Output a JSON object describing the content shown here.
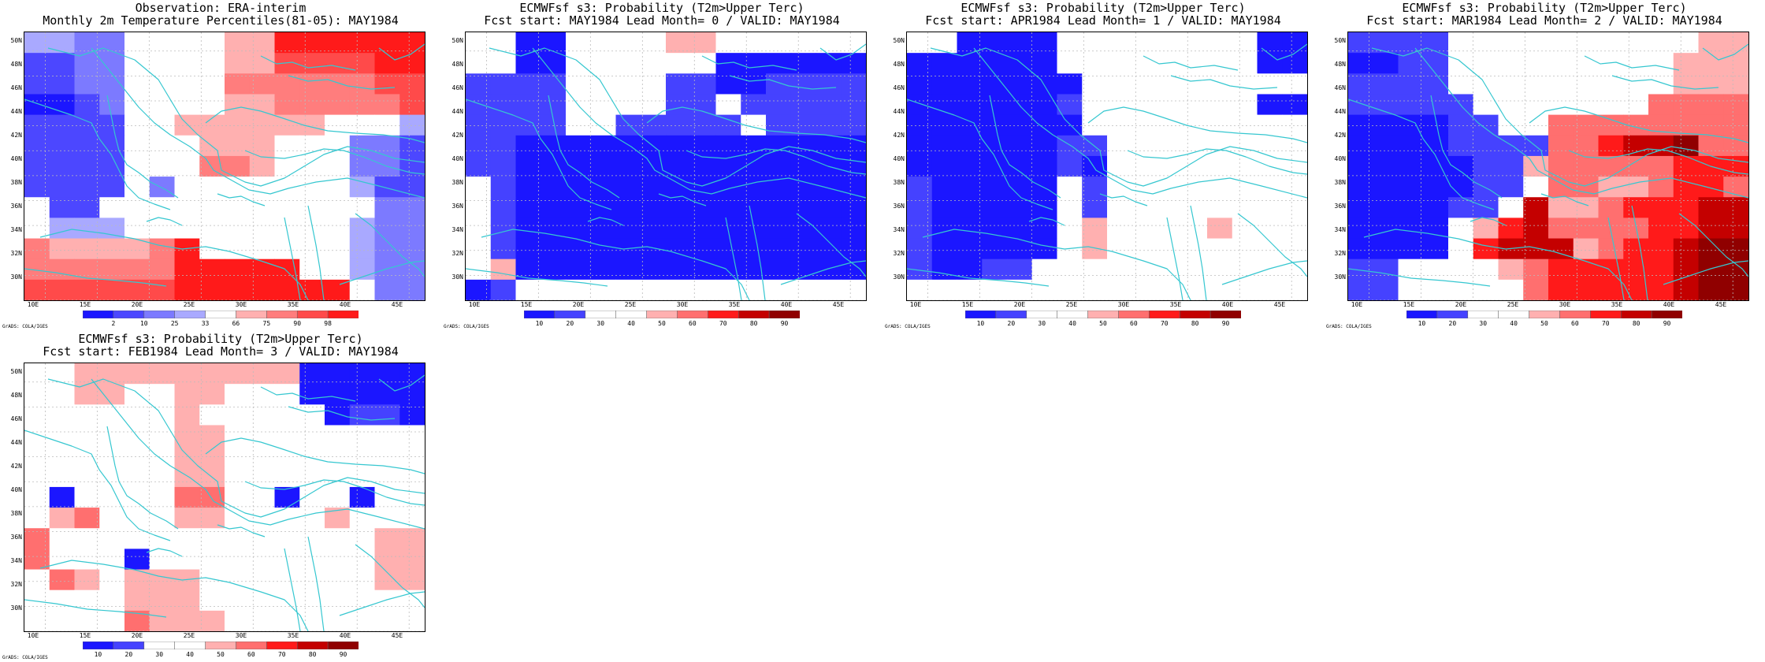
{
  "credit": "GrADS: COLA/IGES",
  "lat_labels": [
    "50N",
    "48N",
    "46N",
    "44N",
    "42N",
    "40N",
    "38N",
    "36N",
    "34N",
    "32N",
    "30N"
  ],
  "lon_labels": [
    "10E",
    "15E",
    "20E",
    "25E",
    "30E",
    "35E",
    "40E",
    "45E"
  ],
  "palette": {
    "map_line": "#36c7d0",
    "grid_line": "#bbbbbb",
    "obs": [
      "#1b16ff",
      "#4c47ff",
      "#7c7aff",
      "#a9a9ff",
      "#ffffff",
      "#ffb0b0",
      "#ff7d7d",
      "#ff4a4a",
      "#ff1a1a"
    ],
    "prob": [
      "#1b16ff",
      "#4542ff",
      "#ffffff",
      "#ffffff",
      "#ffb0b0",
      "#ff6f6f",
      "#ff1a1a",
      "#c40000",
      "#900000"
    ]
  },
  "panels": [
    {
      "title_line1": "Observation: ERA-interim",
      "title_line2": "Monthly 2m Temperature Percentiles(81-05): MAY1984",
      "colorbar_labels": [
        "2",
        "10",
        "25",
        "33",
        "66",
        "75",
        "90",
        "98"
      ],
      "scale": "obs",
      "grid": [
        [
          3,
          3,
          2,
          2,
          4,
          4,
          4,
          4,
          5,
          5,
          8,
          8,
          8,
          8,
          8,
          8
        ],
        [
          1,
          1,
          2,
          2,
          4,
          4,
          4,
          4,
          5,
          5,
          7,
          7,
          7,
          7,
          8,
          8
        ],
        [
          1,
          1,
          2,
          2,
          4,
          4,
          4,
          4,
          6,
          6,
          6,
          6,
          6,
          6,
          7,
          7
        ],
        [
          0,
          0,
          1,
          2,
          4,
          4,
          4,
          4,
          5,
          5,
          6,
          6,
          6,
          6,
          6,
          7
        ],
        [
          1,
          1,
          1,
          1,
          4,
          4,
          5,
          5,
          5,
          5,
          5,
          5,
          4,
          4,
          4,
          3
        ],
        [
          1,
          1,
          1,
          1,
          4,
          4,
          4,
          5,
          5,
          5,
          4,
          4,
          4,
          2,
          2,
          1
        ],
        [
          1,
          1,
          1,
          1,
          4,
          4,
          4,
          6,
          6,
          5,
          4,
          4,
          4,
          2,
          2,
          1
        ],
        [
          1,
          1,
          1,
          1,
          4,
          2,
          4,
          4,
          4,
          4,
          4,
          4,
          4,
          3,
          1,
          1
        ],
        [
          4,
          1,
          1,
          4,
          4,
          4,
          4,
          4,
          4,
          4,
          4,
          4,
          4,
          4,
          2,
          2
        ],
        [
          4,
          3,
          3,
          3,
          4,
          4,
          4,
          4,
          4,
          4,
          4,
          4,
          4,
          3,
          2,
          2
        ],
        [
          6,
          5,
          5,
          5,
          5,
          6,
          8,
          4,
          4,
          4,
          4,
          4,
          4,
          3,
          2,
          2
        ],
        [
          6,
          6,
          6,
          6,
          6,
          6,
          8,
          8,
          8,
          8,
          8,
          4,
          4,
          3,
          2,
          2
        ],
        [
          7,
          7,
          7,
          7,
          7,
          7,
          8,
          8,
          8,
          8,
          8,
          8,
          8,
          4,
          2,
          2
        ]
      ]
    },
    {
      "title_line1": "ECMWFsf s3: Probability (T2m>Upper Terc)",
      "title_line2": "Fcst start: MAY1984  Lead Month= 0 / VALID: MAY1984",
      "colorbar_labels": [
        "10",
        "20",
        "30",
        "40",
        "50",
        "60",
        "70",
        "80",
        "90"
      ],
      "scale": "prob",
      "grid": [
        [
          2,
          2,
          0,
          0,
          2,
          2,
          2,
          2,
          4,
          4,
          2,
          2,
          2,
          2,
          2,
          2
        ],
        [
          2,
          2,
          0,
          0,
          2,
          2,
          2,
          2,
          2,
          2,
          0,
          0,
          0,
          0,
          0,
          0
        ],
        [
          1,
          1,
          1,
          1,
          2,
          2,
          2,
          2,
          1,
          1,
          0,
          0,
          1,
          1,
          1,
          1
        ],
        [
          1,
          1,
          1,
          1,
          2,
          2,
          2,
          2,
          1,
          1,
          2,
          1,
          1,
          1,
          1,
          1
        ],
        [
          1,
          1,
          1,
          1,
          2,
          2,
          1,
          1,
          1,
          1,
          1,
          2,
          1,
          1,
          1,
          1
        ],
        [
          1,
          1,
          0,
          0,
          0,
          0,
          0,
          0,
          0,
          0,
          0,
          0,
          0,
          0,
          0,
          0
        ],
        [
          1,
          1,
          0,
          0,
          0,
          0,
          0,
          0,
          0,
          0,
          0,
          0,
          0,
          0,
          0,
          0
        ],
        [
          2,
          1,
          0,
          0,
          0,
          0,
          0,
          0,
          0,
          0,
          0,
          0,
          0,
          0,
          0,
          0
        ],
        [
          2,
          1,
          0,
          0,
          0,
          0,
          0,
          0,
          0,
          0,
          0,
          0,
          0,
          0,
          0,
          0
        ],
        [
          2,
          1,
          0,
          0,
          0,
          0,
          0,
          0,
          0,
          0,
          0,
          0,
          0,
          0,
          0,
          0
        ],
        [
          2,
          1,
          0,
          0,
          0,
          0,
          0,
          0,
          0,
          0,
          0,
          0,
          0,
          0,
          0,
          0
        ],
        [
          2,
          4,
          0,
          0,
          0,
          0,
          0,
          0,
          0,
          0,
          0,
          0,
          0,
          0,
          0,
          0
        ],
        [
          0,
          1,
          2,
          2,
          2,
          2,
          2,
          2,
          2,
          2,
          2,
          2,
          2,
          2,
          2,
          2
        ]
      ]
    },
    {
      "title_line1": "ECMWFsf s3: Probability (T2m>Upper Terc)",
      "title_line2": "Fcst start: APR1984  Lead Month= 1 / VALID: MAY1984",
      "colorbar_labels": [
        "10",
        "20",
        "30",
        "40",
        "50",
        "60",
        "70",
        "80",
        "90"
      ],
      "scale": "prob",
      "grid": [
        [
          2,
          2,
          0,
          0,
          0,
          0,
          2,
          2,
          2,
          2,
          2,
          2,
          2,
          2,
          0,
          0
        ],
        [
          0,
          0,
          0,
          0,
          0,
          0,
          2,
          2,
          2,
          2,
          2,
          2,
          2,
          2,
          0,
          0
        ],
        [
          0,
          0,
          0,
          0,
          0,
          0,
          0,
          2,
          2,
          2,
          2,
          2,
          2,
          2,
          2,
          2
        ],
        [
          0,
          0,
          0,
          0,
          0,
          0,
          1,
          2,
          2,
          2,
          2,
          2,
          2,
          2,
          0,
          0
        ],
        [
          0,
          0,
          0,
          0,
          0,
          0,
          0,
          2,
          2,
          2,
          2,
          2,
          2,
          2,
          2,
          2
        ],
        [
          0,
          0,
          0,
          0,
          0,
          0,
          1,
          1,
          2,
          2,
          2,
          2,
          2,
          2,
          2,
          2
        ],
        [
          0,
          0,
          0,
          0,
          0,
          0,
          1,
          0,
          2,
          2,
          2,
          2,
          2,
          2,
          2,
          2
        ],
        [
          1,
          0,
          0,
          0,
          0,
          0,
          2,
          1,
          2,
          2,
          2,
          2,
          2,
          2,
          2,
          2
        ],
        [
          1,
          0,
          0,
          0,
          0,
          0,
          2,
          1,
          2,
          2,
          2,
          2,
          2,
          2,
          2,
          2
        ],
        [
          1,
          0,
          0,
          0,
          0,
          0,
          2,
          4,
          2,
          2,
          2,
          2,
          4,
          2,
          2,
          2
        ],
        [
          1,
          0,
          0,
          0,
          0,
          0,
          2,
          4,
          2,
          2,
          2,
          2,
          2,
          2,
          2,
          2
        ],
        [
          1,
          0,
          0,
          1,
          1,
          2,
          2,
          2,
          2,
          2,
          2,
          2,
          2,
          2,
          2,
          2
        ],
        [
          2,
          2,
          2,
          2,
          2,
          2,
          2,
          2,
          2,
          2,
          2,
          2,
          2,
          2,
          2,
          2
        ]
      ]
    },
    {
      "title_line1": "ECMWFsf s3: Probability (T2m>Upper Terc)",
      "title_line2": "Fcst start: MAR1984  Lead Month= 2 / VALID: MAY1984",
      "colorbar_labels": [
        "10",
        "20",
        "30",
        "40",
        "50",
        "60",
        "70",
        "80",
        "90"
      ],
      "scale": "prob",
      "grid": [
        [
          1,
          1,
          1,
          1,
          2,
          2,
          2,
          2,
          2,
          2,
          2,
          2,
          2,
          2,
          4,
          4
        ],
        [
          0,
          0,
          1,
          1,
          2,
          2,
          2,
          2,
          2,
          2,
          2,
          2,
          2,
          4,
          4,
          4
        ],
        [
          1,
          1,
          1,
          1,
          2,
          2,
          2,
          2,
          2,
          2,
          2,
          2,
          2,
          4,
          4,
          4
        ],
        [
          1,
          1,
          1,
          1,
          1,
          2,
          2,
          2,
          2,
          2,
          2,
          2,
          5,
          5,
          5,
          5
        ],
        [
          0,
          0,
          0,
          0,
          1,
          1,
          2,
          2,
          5,
          5,
          5,
          5,
          5,
          5,
          5,
          5
        ],
        [
          0,
          0,
          0,
          0,
          1,
          1,
          1,
          1,
          5,
          5,
          6,
          7,
          7,
          8,
          5,
          5
        ],
        [
          0,
          0,
          0,
          0,
          0,
          1,
          1,
          4,
          5,
          5,
          5,
          5,
          5,
          6,
          6,
          6
        ],
        [
          0,
          0,
          0,
          0,
          0,
          1,
          1,
          2,
          5,
          5,
          4,
          4,
          5,
          6,
          6,
          5
        ],
        [
          0,
          0,
          0,
          0,
          1,
          1,
          2,
          7,
          4,
          4,
          5,
          6,
          6,
          6,
          7,
          7
        ],
        [
          0,
          0,
          0,
          0,
          2,
          4,
          6,
          7,
          5,
          5,
          5,
          5,
          6,
          6,
          7,
          7
        ],
        [
          0,
          0,
          0,
          0,
          2,
          6,
          7,
          7,
          7,
          4,
          5,
          6,
          6,
          7,
          8,
          8
        ],
        [
          1,
          1,
          2,
          2,
          2,
          2,
          4,
          5,
          6,
          6,
          6,
          6,
          6,
          7,
          8,
          8
        ],
        [
          1,
          1,
          2,
          2,
          2,
          2,
          2,
          5,
          6,
          6,
          6,
          6,
          6,
          7,
          8,
          8
        ]
      ]
    },
    {
      "title_line1": "ECMWFsf s3: Probability (T2m>Upper Terc)",
      "title_line2": "Fcst start: FEB1984  Lead Month= 3 / VALID: MAY1984",
      "colorbar_labels": [
        "10",
        "20",
        "30",
        "40",
        "50",
        "60",
        "70",
        "80",
        "90"
      ],
      "scale": "prob",
      "grid": [
        [
          2,
          2,
          4,
          4,
          4,
          4,
          4,
          4,
          4,
          4,
          4,
          0,
          0,
          0,
          0,
          0
        ],
        [
          2,
          2,
          4,
          4,
          2,
          2,
          4,
          4,
          2,
          2,
          2,
          0,
          0,
          0,
          0,
          0
        ],
        [
          2,
          2,
          2,
          2,
          2,
          2,
          4,
          2,
          2,
          2,
          2,
          2,
          0,
          1,
          1,
          0
        ],
        [
          2,
          2,
          2,
          2,
          2,
          2,
          4,
          4,
          2,
          2,
          2,
          2,
          2,
          2,
          2,
          2
        ],
        [
          2,
          2,
          2,
          2,
          2,
          2,
          4,
          4,
          2,
          2,
          2,
          2,
          2,
          2,
          2,
          2
        ],
        [
          2,
          2,
          2,
          2,
          2,
          2,
          4,
          4,
          2,
          2,
          2,
          2,
          2,
          2,
          2,
          2
        ],
        [
          2,
          0,
          2,
          2,
          2,
          2,
          5,
          5,
          2,
          2,
          0,
          2,
          2,
          0,
          2,
          2
        ],
        [
          2,
          4,
          5,
          2,
          2,
          2,
          4,
          4,
          2,
          2,
          2,
          2,
          4,
          2,
          2,
          2
        ],
        [
          5,
          2,
          2,
          2,
          2,
          2,
          2,
          2,
          2,
          2,
          2,
          2,
          2,
          2,
          4,
          4
        ],
        [
          5,
          2,
          2,
          2,
          0,
          2,
          2,
          2,
          2,
          2,
          2,
          2,
          2,
          2,
          4,
          4
        ],
        [
          2,
          5,
          4,
          2,
          4,
          4,
          4,
          2,
          2,
          2,
          2,
          2,
          2,
          2,
          4,
          4
        ],
        [
          2,
          2,
          2,
          2,
          4,
          4,
          4,
          2,
          2,
          2,
          2,
          2,
          2,
          2,
          2,
          2
        ],
        [
          2,
          2,
          2,
          2,
          5,
          4,
          4,
          4,
          2,
          2,
          2,
          2,
          2,
          2,
          2,
          2
        ]
      ]
    }
  ]
}
